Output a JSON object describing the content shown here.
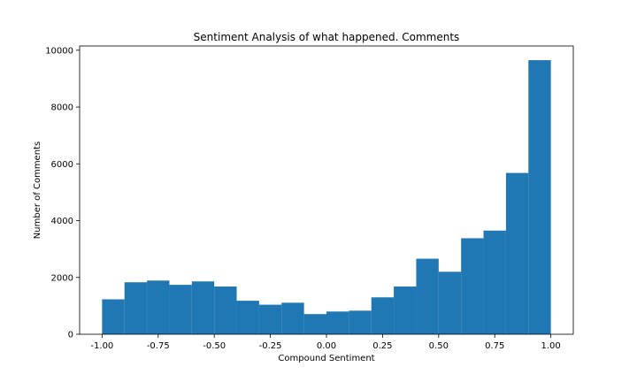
{
  "chart_data": {
    "type": "bar",
    "title": "Sentiment Analysis of what happened. Comments",
    "xlabel": "Compound Sentiment",
    "ylabel": "Number of Comments",
    "xlim": [
      -1.1,
      1.1
    ],
    "ylim": [
      0,
      10150
    ],
    "bin_edges": [
      -1.0,
      -0.9,
      -0.8,
      -0.7,
      -0.6,
      -0.5,
      -0.4,
      -0.3,
      -0.2,
      -0.1,
      0.0,
      0.1,
      0.2,
      0.3,
      0.4,
      0.5,
      0.6,
      0.7,
      0.8,
      0.9,
      1.0
    ],
    "values": [
      1230,
      1830,
      1890,
      1740,
      1860,
      1680,
      1180,
      1040,
      1110,
      710,
      800,
      830,
      1300,
      1680,
      2660,
      2200,
      3380,
      3650,
      5680,
      9650
    ],
    "x_ticks": [
      "-1.00",
      "-0.75",
      "-0.50",
      "-0.25",
      "0.00",
      "0.25",
      "0.50",
      "0.75",
      "1.00"
    ],
    "y_ticks": [
      "0",
      "2000",
      "4000",
      "6000",
      "8000",
      "10000"
    ],
    "bar_color": "#1f77b4",
    "grid": false,
    "legend": "none"
  }
}
